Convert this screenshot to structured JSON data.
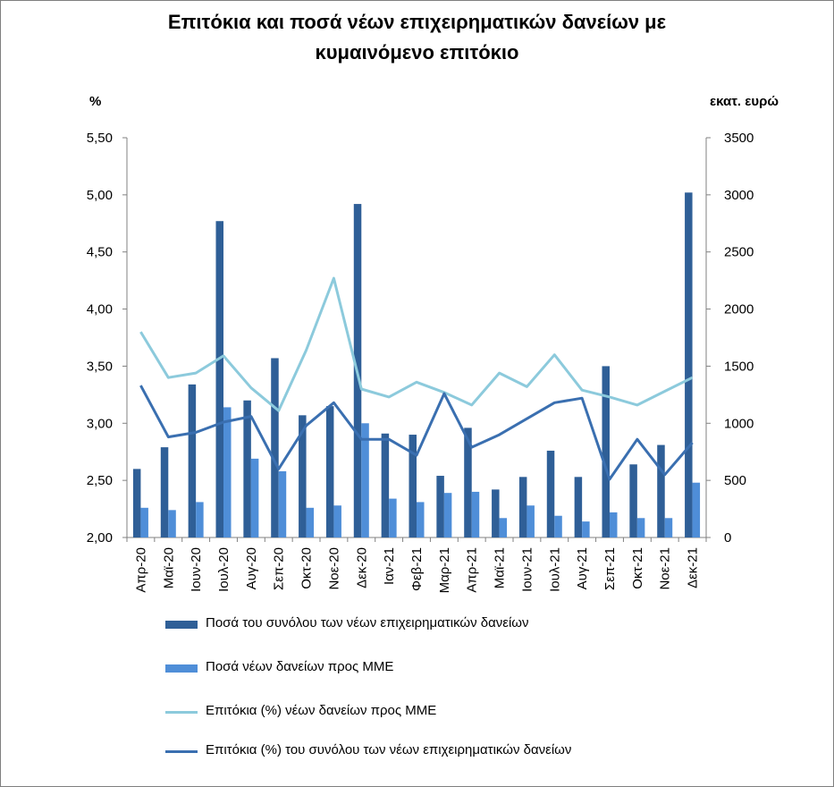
{
  "chart_data": {
    "type": "bar",
    "title_line1": "Επιτόκια και ποσά νέων επιχειρηματικών  δανείων με",
    "title_line2": "κυμαινόμενο επιτόκιο",
    "left_unit": "%",
    "right_unit": "εκατ. ευρώ",
    "categories": [
      "Απρ-20",
      "Μαϊ-20",
      "Ιουν-20",
      "Ιουλ-20",
      "Αυγ-20",
      "Σεπ-20",
      "Οκτ-20",
      "Νοε-20",
      "Δεκ-20",
      "Ιαν-21",
      "Φεβ-21",
      "Μαρ-21",
      "Απρ-21",
      "Μαϊ-21",
      "Ιουν-21",
      "Ιουλ-21",
      "Αυγ-21",
      "Σεπ-21",
      "Οκτ-21",
      "Νοε-21",
      "Δεκ-21"
    ],
    "left_axis": {
      "min": 2.0,
      "max": 5.5,
      "ticks": [
        "2,00",
        "2,50",
        "3,00",
        "3,50",
        "4,00",
        "4,50",
        "5,00",
        "5,50"
      ]
    },
    "right_axis": {
      "min": 0,
      "max": 3500,
      "ticks": [
        "0",
        "500",
        "1000",
        "1500",
        "2000",
        "2500",
        "3000",
        "3500"
      ]
    },
    "grid": false,
    "legend_position": "bottom",
    "series": [
      {
        "name": "Ποσά του συνόλου των νέων επιχειρηματικών δανείων",
        "kind": "bar",
        "axis": "right",
        "color": "#2f5f97",
        "values": [
          600,
          790,
          1340,
          2770,
          1200,
          1570,
          1070,
          1150,
          2920,
          910,
          900,
          540,
          960,
          420,
          530,
          760,
          530,
          1500,
          640,
          810,
          3020
        ]
      },
      {
        "name": "Ποσά νέων δανείων προς ΜΜΕ",
        "kind": "bar",
        "axis": "right",
        "color": "#4f8ed8",
        "values": [
          260,
          240,
          310,
          1140,
          690,
          580,
          260,
          280,
          1000,
          340,
          310,
          390,
          400,
          170,
          280,
          190,
          140,
          220,
          170,
          170,
          480
        ]
      },
      {
        "name": "Επιτόκια (%) νέων δανείων προς ΜΜΕ",
        "kind": "line",
        "axis": "left",
        "color": "#8ccadc",
        "values": [
          3.8,
          3.4,
          3.44,
          3.59,
          3.31,
          3.11,
          3.64,
          4.27,
          3.3,
          3.23,
          3.36,
          3.27,
          3.16,
          3.44,
          3.32,
          3.6,
          3.29,
          3.23,
          3.16,
          3.28,
          3.4
        ]
      },
      {
        "name": "Επιτόκια (%) του συνόλου των νέων επιχειρηματικών δανείων",
        "kind": "line",
        "axis": "left",
        "color": "#3a6fb0",
        "values": [
          3.33,
          2.88,
          2.92,
          3.01,
          3.06,
          2.6,
          2.98,
          3.18,
          2.86,
          2.86,
          2.72,
          3.26,
          2.79,
          2.9,
          3.04,
          3.18,
          3.22,
          2.51,
          2.86,
          2.55,
          2.83
        ]
      }
    ]
  }
}
